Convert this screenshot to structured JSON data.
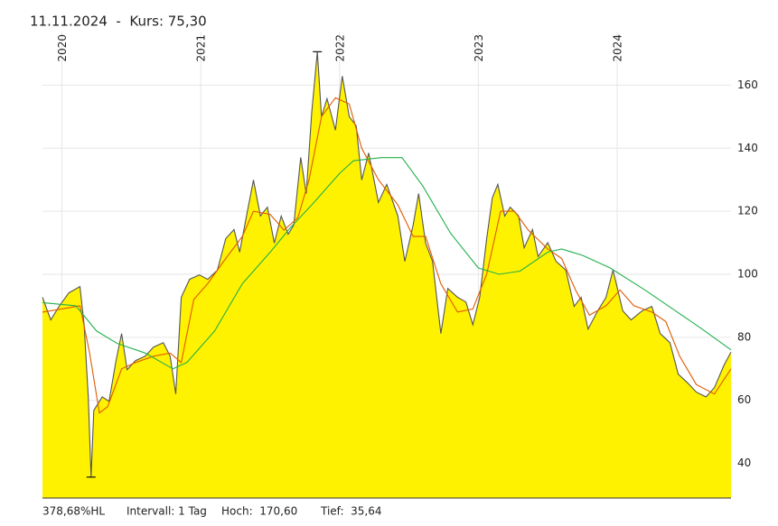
{
  "chart_data": {
    "type": "line",
    "title": "11.11.2024  -  Kurs: 75,30",
    "footer": [
      "378,68%HL",
      "Intervall: 1 Tag",
      "Hoch:  170,60",
      "Tief:  35,64"
    ],
    "xlim": [
      2019.86,
      2024.82
    ],
    "xticks": [
      2020,
      2021,
      2022,
      2023,
      2024
    ],
    "ylim": [
      29,
      177
    ],
    "yticks": [
      40,
      60,
      80,
      100,
      120,
      140,
      160
    ],
    "grid": true,
    "series": [
      {
        "color": "#555555",
        "fill": "#fff200",
        "x": [
          2019.86,
          2019.92,
          2019.98,
          2020.05,
          2020.13,
          2020.16,
          2020.19,
          2020.21,
          2020.23,
          2020.29,
          2020.34,
          2020.39,
          2020.43,
          2020.47,
          2020.53,
          2020.6,
          2020.66,
          2020.73,
          2020.78,
          2020.82,
          2020.86,
          2020.92,
          2020.99,
          2021.05,
          2021.12,
          2021.18,
          2021.24,
          2021.28,
          2021.33,
          2021.38,
          2021.43,
          2021.48,
          2021.53,
          2021.58,
          2021.63,
          2021.67,
          2021.72,
          2021.76,
          2021.8,
          2021.84,
          2021.87,
          2021.91,
          2021.97,
          2022.02,
          2022.07,
          2022.12,
          2022.16,
          2022.21,
          2022.28,
          2022.34,
          2022.42,
          2022.47,
          2022.53,
          2022.57,
          2022.62,
          2022.67,
          2022.73,
          2022.78,
          2022.85,
          2022.91,
          2022.96,
          2023.01,
          2023.06,
          2023.1,
          2023.14,
          2023.19,
          2023.23,
          2023.29,
          2023.33,
          2023.39,
          2023.43,
          2023.5,
          2023.56,
          2023.63,
          2023.69,
          2023.74,
          2023.79,
          2023.86,
          2023.92,
          2023.97,
          2024.04,
          2024.1,
          2024.18,
          2024.25,
          2024.31,
          2024.38,
          2024.44,
          2024.51,
          2024.57,
          2024.64,
          2024.7,
          2024.77,
          2024.82
        ],
        "values": [
          92.7,
          85.5,
          89.8,
          94.1,
          96.1,
          84,
          61,
          35.64,
          56.8,
          61.1,
          59.7,
          72.6,
          81.2,
          69.7,
          72.6,
          74,
          76.9,
          78.3,
          74,
          62,
          92.7,
          98.4,
          99.8,
          98.4,
          101.3,
          111.3,
          114.2,
          107,
          118.5,
          129.9,
          118.5,
          121.3,
          109.9,
          118.5,
          112.7,
          115.6,
          137.1,
          125.6,
          151.4,
          170.6,
          150,
          155.7,
          145.7,
          162.9,
          150,
          147.1,
          129.9,
          138.5,
          122.8,
          128.5,
          118.5,
          104.1,
          115.6,
          125.6,
          109.9,
          104.1,
          81.2,
          95.5,
          92.7,
          91.2,
          84,
          92.7,
          111.3,
          124.2,
          128.5,
          118.5,
          121.3,
          118.5,
          108.4,
          114.2,
          105.6,
          110,
          104.1,
          101.3,
          89.8,
          92.7,
          82.6,
          88.4,
          92.7,
          101.3,
          88.4,
          85.5,
          88.4,
          89.8,
          81.2,
          78.3,
          68.3,
          65.4,
          62.6,
          61.1,
          64,
          71.2,
          75.3
        ]
      },
      {
        "color": "#e05a00",
        "x": [
          2019.86,
          2020.0,
          2020.13,
          2020.2,
          2020.27,
          2020.33,
          2020.43,
          2020.53,
          2020.66,
          2020.78,
          2020.86,
          2020.95,
          2021.05,
          2021.18,
          2021.3,
          2021.38,
          2021.5,
          2021.6,
          2021.7,
          2021.78,
          2021.87,
          2021.97,
          2022.07,
          2022.16,
          2022.28,
          2022.42,
          2022.53,
          2022.62,
          2022.73,
          2022.85,
          2022.96,
          2023.06,
          2023.16,
          2023.26,
          2023.36,
          2023.5,
          2023.6,
          2023.7,
          2023.8,
          2023.92,
          2024.02,
          2024.12,
          2024.25,
          2024.35,
          2024.45,
          2024.57,
          2024.7,
          2024.82
        ],
        "values": [
          88,
          89,
          90,
          75,
          56,
          58,
          70,
          72,
          74,
          75,
          72,
          92,
          97,
          105,
          112,
          120,
          119,
          114,
          118,
          130,
          150,
          156,
          154,
          140,
          130,
          122,
          112,
          112,
          97,
          88,
          89,
          100,
          120,
          120,
          114,
          108,
          105,
          95,
          87,
          90,
          95,
          90,
          88,
          85,
          74,
          65,
          62,
          70
        ]
      },
      {
        "color": "#22b14c",
        "x": [
          2019.86,
          2020.1,
          2020.25,
          2020.4,
          2020.6,
          2020.8,
          2020.9,
          2021.1,
          2021.3,
          2021.5,
          2021.65,
          2021.8,
          2022.0,
          2022.1,
          2022.3,
          2022.45,
          2022.6,
          2022.8,
          2023.0,
          2023.15,
          2023.3,
          2023.5,
          2023.6,
          2023.75,
          2023.95,
          2024.2,
          2024.4,
          2024.6,
          2024.82
        ],
        "values": [
          91,
          90,
          82,
          78,
          75,
          70,
          72,
          82,
          97,
          107,
          115,
          122,
          132,
          136,
          137,
          137,
          128,
          113,
          102,
          100,
          101,
          107,
          108,
          106,
          102,
          95,
          89,
          83,
          76
        ]
      }
    ]
  }
}
